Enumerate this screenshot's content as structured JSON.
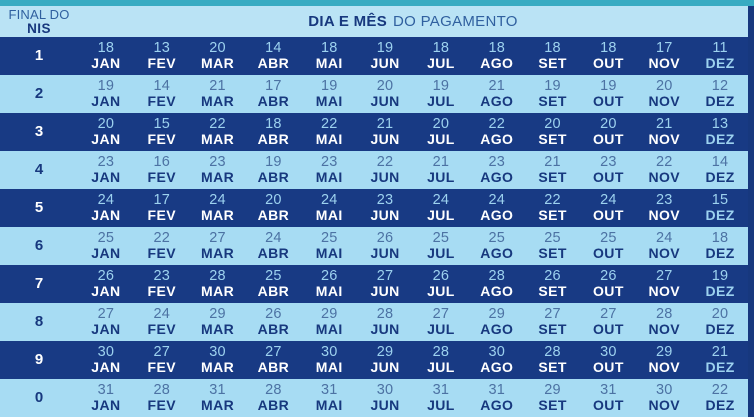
{
  "chart_data": {
    "type": "table",
    "title_bold": "DIA E MÊS",
    "title_regular": "DO PAGAMENTO",
    "row_header_label_line1": "FINAL DO",
    "row_header_label_line2": "NIS",
    "months": [
      "JAN",
      "FEV",
      "MAR",
      "ABR",
      "MAI",
      "JUN",
      "JUL",
      "AGO",
      "SET",
      "OUT",
      "NOV",
      "DEZ"
    ],
    "rows": [
      {
        "nis": "1",
        "days": [
          18,
          13,
          20,
          14,
          18,
          19,
          18,
          18,
          18,
          18,
          17,
          11
        ]
      },
      {
        "nis": "2",
        "days": [
          19,
          14,
          21,
          17,
          19,
          20,
          19,
          21,
          19,
          19,
          20,
          12
        ]
      },
      {
        "nis": "3",
        "days": [
          20,
          15,
          22,
          18,
          22,
          21,
          20,
          22,
          20,
          20,
          21,
          13
        ]
      },
      {
        "nis": "4",
        "days": [
          23,
          16,
          23,
          19,
          23,
          22,
          21,
          23,
          21,
          23,
          22,
          14
        ]
      },
      {
        "nis": "5",
        "days": [
          24,
          17,
          24,
          20,
          24,
          23,
          24,
          24,
          22,
          24,
          23,
          15
        ]
      },
      {
        "nis": "6",
        "days": [
          25,
          22,
          27,
          24,
          25,
          26,
          25,
          25,
          25,
          25,
          24,
          18
        ]
      },
      {
        "nis": "7",
        "days": [
          26,
          23,
          28,
          25,
          26,
          27,
          26,
          28,
          26,
          26,
          27,
          19
        ]
      },
      {
        "nis": "8",
        "days": [
          27,
          24,
          29,
          26,
          29,
          28,
          27,
          29,
          27,
          27,
          28,
          20
        ]
      },
      {
        "nis": "9",
        "days": [
          30,
          27,
          30,
          27,
          30,
          29,
          28,
          30,
          28,
          30,
          29,
          21
        ]
      },
      {
        "nis": "0",
        "days": [
          31,
          28,
          31,
          28,
          31,
          30,
          31,
          31,
          29,
          31,
          30,
          22
        ]
      }
    ]
  },
  "colors": {
    "top_strip": "#38abc2",
    "header_bg": "#bae3f5",
    "header_regular_text": "#30609f",
    "navy_text": "#17387e",
    "dark_row_bg": "#183a84",
    "light_row_bg": "#a7dcf3",
    "dark_row_day": "#9dd2ef",
    "dark_row_month": "#ffffff",
    "light_row_day": "#4c72a3",
    "right_edge": "#17387e"
  }
}
